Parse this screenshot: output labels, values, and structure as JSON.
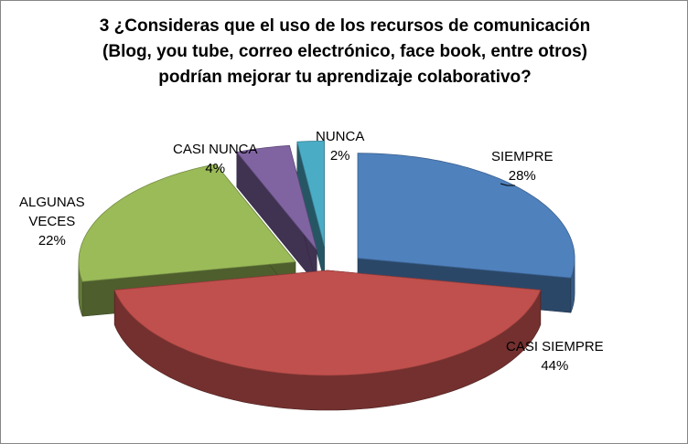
{
  "chart_data": {
    "type": "pie",
    "title_lines": [
      "3 ¿Consideras que el uso de los recursos de comunicación",
      "(Blog, you tube, correo electrónico, face book,  entre otros)",
      "podrían mejorar tu aprendizaje colaborativo?"
    ],
    "categories": [
      "SIEMPRE",
      "CASI SIEMPRE",
      "ALGUNAS VECES",
      "CASI NUNCA",
      "NUNCA"
    ],
    "values": [
      28,
      44,
      22,
      4,
      2
    ],
    "value_labels": [
      "28%",
      "44%",
      "22%",
      "4%",
      "2%"
    ],
    "label_lines": [
      [
        "SIEMPRE",
        "28%"
      ],
      [
        "CASI SIEMPRE",
        "44%"
      ],
      [
        "ALGUNAS",
        "VECES",
        "22%"
      ],
      [
        "CASI NUNCA",
        "4%"
      ],
      [
        "NUNCA",
        "2%"
      ]
    ],
    "colors": [
      "#4F81BD",
      "#C0504D",
      "#9BBB59",
      "#8064A2",
      "#4BACC6"
    ],
    "style": "3d-exploded-pie",
    "legend": "none"
  }
}
